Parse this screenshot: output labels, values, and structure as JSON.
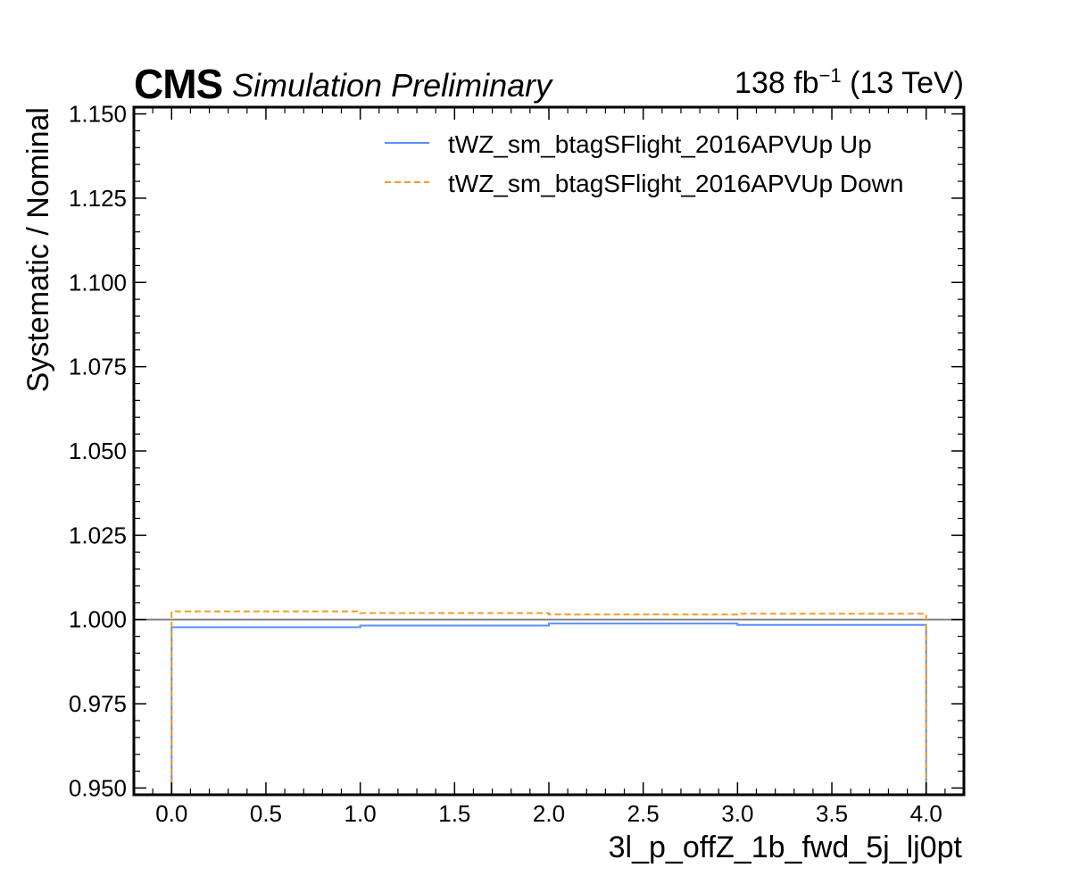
{
  "header": {
    "experiment": "CMS",
    "status": "Simulation Preliminary",
    "lumi_value": "138 fb",
    "lumi_exponent": "−1",
    "energy": " (13 TeV)"
  },
  "chart_data": {
    "type": "line",
    "step": true,
    "xlabel": "3l_p_offZ_1b_fwd_5j_lj0pt",
    "ylabel": "Systematic / Nominal",
    "xlim": [
      -0.2,
      4.2
    ],
    "ylim": [
      0.948,
      1.152
    ],
    "xticks": [
      0.0,
      0.5,
      1.0,
      1.5,
      2.0,
      2.5,
      3.0,
      3.5,
      4.0
    ],
    "xtick_labels": [
      "0.0",
      "0.5",
      "1.0",
      "1.5",
      "2.0",
      "2.5",
      "3.0",
      "3.5",
      "4.0"
    ],
    "yticks": [
      0.95,
      0.975,
      1.0,
      1.025,
      1.05,
      1.075,
      1.1,
      1.125,
      1.15
    ],
    "ytick_labels": [
      "0.950",
      "0.975",
      "1.000",
      "1.025",
      "1.050",
      "1.075",
      "1.100",
      "1.125",
      "1.150"
    ],
    "bin_edges": [
      0,
      1,
      2,
      3,
      4
    ],
    "reference_line": 1.0,
    "series": [
      {
        "name": "tWZ_sm_btagSFlight_2016APVUp Up",
        "values": [
          0.9977,
          0.9982,
          0.9988,
          0.9984
        ],
        "color": "#5790fc",
        "dash": "solid"
      },
      {
        "name": "tWZ_sm_btagSFlight_2016APVUp Down",
        "values": [
          1.0024,
          1.0019,
          1.0015,
          1.0017
        ],
        "color": "#f89c20",
        "dash": "dashed"
      }
    ],
    "reference_color": "#808080",
    "legend_position": "top-right",
    "grid": false
  }
}
